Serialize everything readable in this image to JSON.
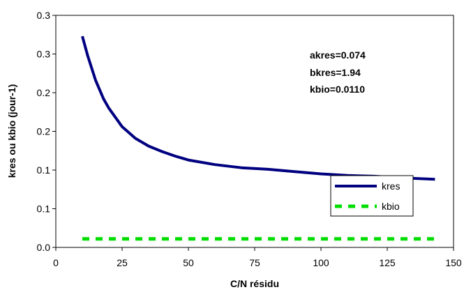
{
  "chart_data": {
    "type": "line",
    "xlabel": "C/N résidu",
    "ylabel": "kres  ou  kbio  (jour-1)",
    "xlim": [
      0,
      150
    ],
    "ylim": [
      0,
      0.3
    ],
    "x_ticks": [
      0,
      25,
      50,
      75,
      100,
      125,
      150
    ],
    "x_tick_labels": [
      "0",
      "25",
      "50",
      "75",
      "100",
      "125",
      "150"
    ],
    "y_ticks": [
      0.0,
      0.05,
      0.1,
      0.15,
      0.2,
      0.25,
      0.3
    ],
    "y_tick_labels": [
      "0.0",
      "0.1",
      "0.1",
      "0.2",
      "0.2",
      "0.3",
      "0.3"
    ],
    "grid": false,
    "legend_position": "bottom-right",
    "annotations": [
      "akres=0.074",
      "bkres=1.94",
      "kbio=0.0110"
    ],
    "series": [
      {
        "name": "kres",
        "color": "#000080",
        "style": "solid",
        "x": [
          10,
          12,
          15,
          18,
          20,
          25,
          30,
          35,
          40,
          45,
          50,
          60,
          70,
          80,
          90,
          100,
          110,
          120,
          130,
          143
        ],
        "y": [
          0.273,
          0.248,
          0.216,
          0.192,
          0.18,
          0.156,
          0.141,
          0.131,
          0.124,
          0.118,
          0.113,
          0.107,
          0.103,
          0.101,
          0.098,
          0.095,
          0.093,
          0.092,
          0.09,
          0.088
        ]
      },
      {
        "name": "kbio",
        "color": "#00dd00",
        "style": "dashed",
        "x": [
          10,
          143
        ],
        "y": [
          0.011,
          0.011
        ]
      }
    ]
  }
}
